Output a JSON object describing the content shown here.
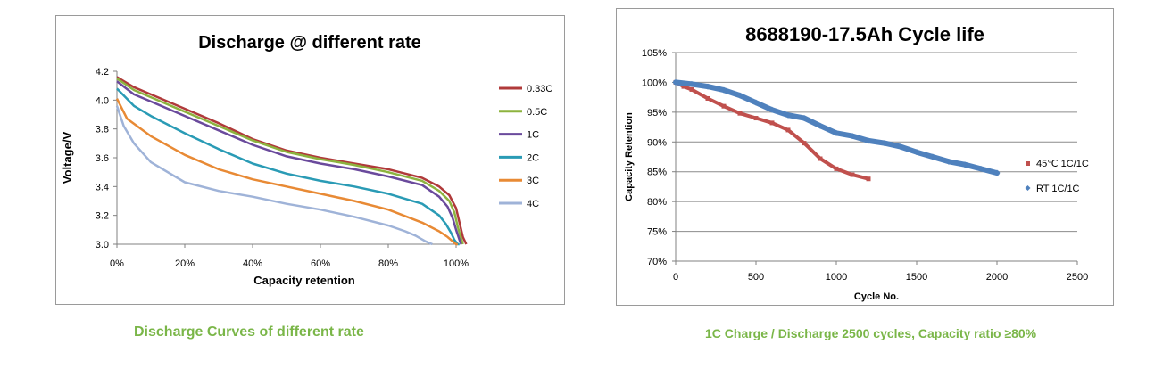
{
  "captions": {
    "left": "Discharge Curves of different rate",
    "right": "1C Charge / Discharge 2500 cycles, Capacity ratio ≥80%"
  },
  "chart_data": [
    {
      "type": "line",
      "title": "Discharge @ different rate",
      "xlabel": "Capacity retention",
      "ylabel": "Voltage/V",
      "xlim": [
        0,
        100
      ],
      "ylim": [
        3.0,
        4.2
      ],
      "x_ticks": [
        "0%",
        "20%",
        "40%",
        "60%",
        "80%",
        "100%"
      ],
      "y_ticks": [
        "3.0",
        "3.2",
        "3.4",
        "3.6",
        "3.8",
        "4.0",
        "4.2"
      ],
      "grid": false,
      "legend_position": "right",
      "series": [
        {
          "name": "0.33C",
          "color": "#b03a3a",
          "x": [
            0,
            5,
            10,
            20,
            30,
            40,
            50,
            60,
            70,
            80,
            90,
            95,
            98,
            100,
            101,
            102,
            103
          ],
          "y": [
            4.16,
            4.09,
            4.04,
            3.94,
            3.84,
            3.73,
            3.65,
            3.6,
            3.56,
            3.52,
            3.46,
            3.4,
            3.34,
            3.25,
            3.15,
            3.05,
            3.0
          ]
        },
        {
          "name": "0.5C",
          "color": "#8db33f",
          "x": [
            0,
            5,
            10,
            20,
            30,
            40,
            50,
            60,
            70,
            80,
            90,
            95,
            98,
            99.5,
            100.5,
            101.5,
            102
          ],
          "y": [
            4.15,
            4.07,
            4.02,
            3.92,
            3.82,
            3.72,
            3.64,
            3.59,
            3.55,
            3.5,
            3.44,
            3.37,
            3.3,
            3.22,
            3.12,
            3.04,
            3.0
          ]
        },
        {
          "name": "1C",
          "color": "#6a4a9c",
          "x": [
            0,
            5,
            10,
            20,
            30,
            40,
            50,
            60,
            70,
            80,
            90,
            95,
            97.5,
            99,
            100,
            101,
            101.5
          ],
          "y": [
            4.13,
            4.04,
            3.99,
            3.89,
            3.79,
            3.69,
            3.61,
            3.56,
            3.52,
            3.47,
            3.41,
            3.33,
            3.26,
            3.18,
            3.1,
            3.03,
            3.0
          ]
        },
        {
          "name": "2C",
          "color": "#2a9bb5",
          "x": [
            0,
            5,
            10,
            20,
            30,
            40,
            50,
            60,
            70,
            80,
            90,
            95,
            97,
            98.5,
            99.5,
            100.5,
            101
          ],
          "y": [
            4.08,
            3.96,
            3.89,
            3.77,
            3.66,
            3.56,
            3.49,
            3.44,
            3.4,
            3.35,
            3.28,
            3.2,
            3.14,
            3.08,
            3.03,
            3.0,
            3.0
          ]
        },
        {
          "name": "3C",
          "color": "#e88a35",
          "x": [
            0,
            3,
            10,
            20,
            30,
            40,
            50,
            60,
            70,
            80,
            90,
            95,
            97.5,
            99,
            100,
            100.5
          ],
          "y": [
            4.01,
            3.87,
            3.75,
            3.62,
            3.52,
            3.45,
            3.4,
            3.35,
            3.3,
            3.24,
            3.15,
            3.09,
            3.05,
            3.02,
            3.0,
            3.0
          ]
        },
        {
          "name": "4C",
          "color": "#9fb3d8",
          "x": [
            0,
            2,
            5,
            10,
            20,
            30,
            40,
            50,
            60,
            70,
            80,
            85,
            88,
            91,
            93
          ],
          "y": [
            3.96,
            3.82,
            3.7,
            3.57,
            3.43,
            3.37,
            3.33,
            3.28,
            3.24,
            3.19,
            3.13,
            3.09,
            3.06,
            3.02,
            3.0
          ]
        }
      ]
    },
    {
      "type": "scatter",
      "title": "8688190-17.5Ah Cycle life",
      "xlabel": "Cycle No.",
      "ylabel": "Capacity Retention",
      "xlim": [
        0,
        2500
      ],
      "ylim": [
        70,
        105
      ],
      "x_ticks": [
        "0",
        "500",
        "1000",
        "1500",
        "2000",
        "2500"
      ],
      "y_ticks": [
        "70%",
        "75%",
        "80%",
        "85%",
        "90%",
        "95%",
        "100%",
        "105%"
      ],
      "grid": true,
      "legend_position": "right",
      "series": [
        {
          "name": "45℃ 1C/1C",
          "color": "#c0504d",
          "marker": "square",
          "x": [
            0,
            50,
            100,
            200,
            300,
            400,
            500,
            600,
            700,
            800,
            900,
            1000,
            1100,
            1200
          ],
          "y": [
            100,
            99.3,
            98.8,
            97.3,
            96,
            94.8,
            94,
            93.2,
            92,
            89.8,
            87.2,
            85.5,
            84.5,
            83.8
          ]
        },
        {
          "name": "RT 1C/1C",
          "color": "#4f81bd",
          "marker": "diamond",
          "x": [
            0,
            100,
            200,
            300,
            400,
            500,
            600,
            700,
            800,
            900,
            1000,
            1100,
            1200,
            1300,
            1400,
            1500,
            1600,
            1700,
            1800,
            1900,
            2000
          ],
          "y": [
            100,
            99.7,
            99.3,
            98.7,
            97.8,
            96.6,
            95.4,
            94.5,
            94,
            92.7,
            91.5,
            91,
            90.2,
            89.8,
            89.2,
            88.3,
            87.5,
            86.7,
            86.2,
            85.5,
            84.8
          ]
        }
      ]
    }
  ]
}
